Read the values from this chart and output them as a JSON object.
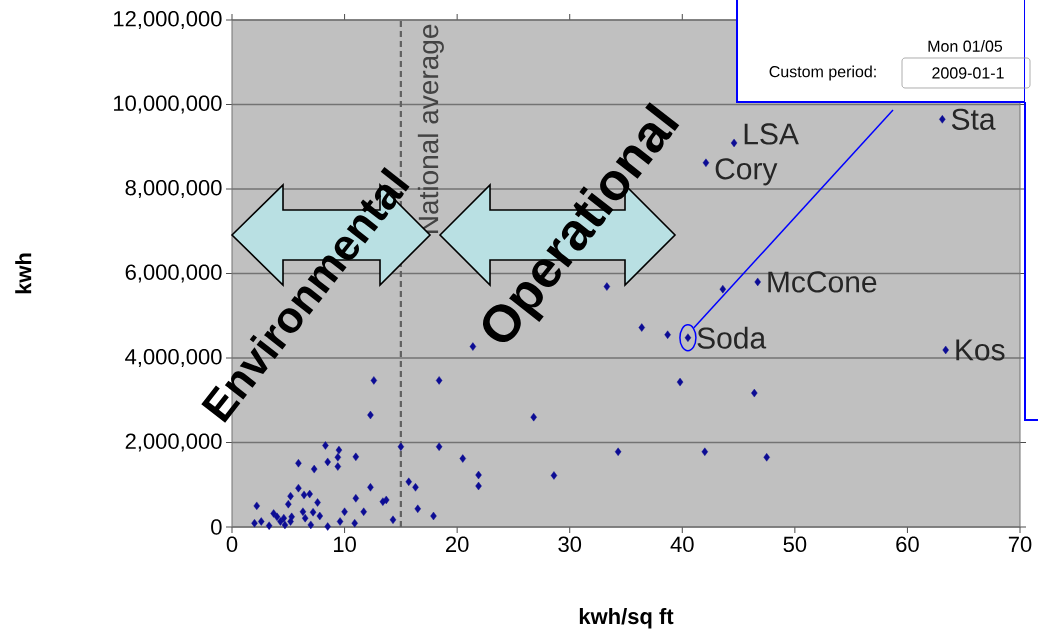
{
  "chart_data": {
    "type": "scatter",
    "xlabel": "kwh/sq ft",
    "ylabel": "kwh",
    "color": "#0c0c94",
    "marker": "diamond",
    "grid": "y",
    "x": [
      21.4,
      12.6,
      18.4,
      12.3,
      8.3,
      9.5,
      9.4,
      9.4,
      8.5,
      5.9,
      7.3,
      11.0,
      15.0,
      18.4,
      20.5,
      21.9,
      21.9,
      12.3,
      15.7,
      16.3,
      16.5,
      17.9,
      14.3,
      11.7,
      11.0,
      13.4,
      13.7,
      10.0,
      9.6,
      10.9,
      8.5,
      7.0,
      7.6,
      7.2,
      7.8,
      6.3,
      6.5,
      5.9,
      5.2,
      6.9,
      6.4,
      5.0,
      3.7,
      4.0,
      2.2,
      2.0,
      2.6,
      3.3,
      4.3,
      4.7,
      5.2,
      4.6,
      5.3,
      63.1,
      44.6,
      42.1,
      46.7,
      43.6,
      33.3,
      36.4,
      38.7,
      40.5,
      63.4,
      39.8,
      46.4,
      26.8,
      34.3,
      42.0,
      47.5,
      28.6
    ],
    "values": [
      4270000,
      3470000,
      3470000,
      2650000,
      1930000,
      1820000,
      1650000,
      1430000,
      1540000,
      1510000,
      1370000,
      1660000,
      1900000,
      1900000,
      1620000,
      1230000,
      970000,
      940000,
      1070000,
      940000,
      430000,
      260000,
      170000,
      360000,
      680000,
      600000,
      640000,
      360000,
      130000,
      90000,
      10000,
      50000,
      580000,
      350000,
      260000,
      360000,
      210000,
      920000,
      730000,
      780000,
      760000,
      540000,
      320000,
      240000,
      500000,
      90000,
      130000,
      30000,
      130000,
      50000,
      130000,
      210000,
      240000,
      9650000,
      9090000,
      8620000,
      5800000,
      5630000,
      5690000,
      4720000,
      4550000,
      4480000,
      4190000,
      3430000,
      3170000,
      2600000,
      1780000,
      1780000,
      1650000,
      1220000
    ],
    "xlim": [
      0,
      70
    ],
    "xticks": [
      0,
      10,
      20,
      30,
      40,
      50,
      60,
      70
    ],
    "ylim": [
      0,
      12000000
    ],
    "yticks": [
      {
        "value": 0,
        "label": "0"
      },
      {
        "value": 2000000,
        "label": "2,000,000"
      },
      {
        "value": 4000000,
        "label": "4,000,000"
      },
      {
        "value": 6000000,
        "label": "6,000,000"
      },
      {
        "value": 8000000,
        "label": "8,000,000"
      },
      {
        "value": 10000000,
        "label": "10,000,000"
      },
      {
        "value": 12000000,
        "label": "12,000,000"
      }
    ],
    "ref_lines": [
      {
        "axis": "x",
        "value": 15,
        "label": "National average",
        "color": "#606060",
        "line_style": "dashed"
      }
    ],
    "annotations": [
      {
        "text": "LSA",
        "x": 44.6,
        "y": 9090000
      },
      {
        "text": "Cory",
        "x": 42.1,
        "y": 8620000
      },
      {
        "text": "McCone",
        "x": 46.7,
        "y": 5800000
      },
      {
        "text": "Soda",
        "x": 40.5,
        "y": 4480000
      },
      {
        "text": "Sta",
        "x": 63.1,
        "y": 9650000
      },
      {
        "text": "Kos",
        "x": 63.4,
        "y": 4190000
      },
      "Environmental",
      "Operational",
      "Mon 01/05",
      "Custom period:",
      "2009-01-1"
    ]
  }
}
